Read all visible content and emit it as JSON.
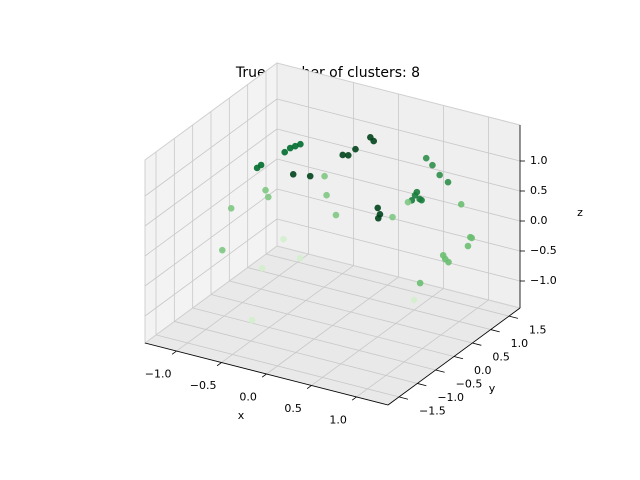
{
  "chart_data": {
    "type": "scatter3d",
    "title": "True number of clusters: 8",
    "xlabel": "x",
    "ylabel": "y",
    "zlabel": "z",
    "xlim": [
      -1.35,
      1.35
    ],
    "ylim": [
      -1.8,
      1.8
    ],
    "zlim": [
      -1.45,
      1.6
    ],
    "xticks": [
      {
        "value": -1,
        "label": "−1.0"
      },
      {
        "value": -0.5,
        "label": "−0.5"
      },
      {
        "value": 0,
        "label": "0.0"
      },
      0.5,
      {
        "value": 1,
        "label": "1.0"
      }
    ],
    "yticks": [
      {
        "value": -1.5,
        "label": "−1.5"
      },
      {
        "value": -1,
        "label": "−1.0"
      },
      {
        "value": -0.5,
        "label": "−0.5"
      },
      {
        "value": 0,
        "label": "0.0"
      },
      0.5,
      {
        "value": 1,
        "label": "1.0"
      },
      1.5
    ],
    "zticks": [
      {
        "value": -1,
        "label": "−1.0"
      },
      {
        "value": -0.5,
        "label": "−0.5"
      },
      {
        "value": 0,
        "label": "0.0"
      },
      0.5,
      {
        "value": 1,
        "label": "1.0"
      }
    ],
    "grid": true,
    "series": [
      {
        "color": "#006d2c",
        "x": [
          -0.69,
          -0.69,
          -0.67,
          -0.65,
          -0.74,
          -0.74
        ],
        "y": [
          0.39,
          0.54,
          0.63,
          0.72,
          -0.24,
          -0.13
        ],
        "z": [
          1.0,
          1.0,
          1.0,
          1.0,
          1.0,
          1.0
        ]
      },
      {
        "color": "#00441b",
        "x": [
          -0.18,
          -0.13,
          -0.14,
          -0.15,
          -0.08
        ],
        "y": [
          0.72,
          0.75,
          0.97,
          1.4,
          1.32
        ],
        "z": [
          1.0,
          1.0,
          1.0,
          1.0,
          1.0
        ]
      },
      {
        "color": "#00441b",
        "x": [
          -0.64,
          -0.48,
          0.03,
          0.12,
          0.15
        ],
        "y": [
          0.5,
          0.57,
          1.16,
          1.0,
          0.88
        ],
        "z": [
          0.6,
          0.6,
          0.0,
          0.0,
          0.0
        ]
      },
      {
        "color": "#1a7d3c",
        "x": [
          0.33,
          0.41,
          0.36,
          0.44,
          0.31
        ],
        "y": [
          1.44,
          1.37,
          1.28,
          1.35,
          1.54
        ],
        "z": [
          0.2,
          0.2,
          0.2,
          0.2,
          0.2
        ]
      },
      {
        "color": "#2f8f4a",
        "x": [
          0.41,
          0.54,
          0.71,
          0.86
        ],
        "y": [
          1.55,
          1.4,
          1.18,
          1.04
        ],
        "z": [
          0.8,
          0.8,
          0.8,
          0.8
        ]
      },
      {
        "color": "#7fc883",
        "x": [
          -1.04,
          -0.96,
          -0.86,
          -0.98,
          -0.63,
          -0.4,
          -0.1,
          0.39,
          0.35
        ],
        "y": [
          -0.21,
          0.53,
          0.36,
          -0.6,
          1.33,
          0.82,
          0.34,
          0.68,
          1.2
        ],
        "z": [
          0.2,
          0.2,
          0.2,
          -0.3,
          0.2,
          0.2,
          0.2,
          0.2,
          0.2
        ]
      },
      {
        "color": "#6abf71",
        "x": [
          0.88,
          0.92,
          0.94,
          1.0,
          0.9,
          0.96,
          1.02,
          0.55
        ],
        "y": [
          1.35,
          1.5,
          1.49,
          1.24,
          0.81,
          0.72,
          0.66,
          1.04
        ],
        "z": [
          0.3,
          -0.3,
          -0.3,
          -0.3,
          -0.3,
          -0.3,
          -0.3,
          -1.0
        ]
      },
      {
        "color": "#d3eecd",
        "x": [
          -1.07,
          -0.92,
          -0.72,
          -0.42,
          0.69
        ],
        "y": [
          1.29,
          0.34,
          0.88,
          -1.16,
          0.53
        ],
        "z": [
          -1.0,
          -1.0,
          -1.0,
          -1.0,
          -1.0
        ]
      }
    ]
  }
}
